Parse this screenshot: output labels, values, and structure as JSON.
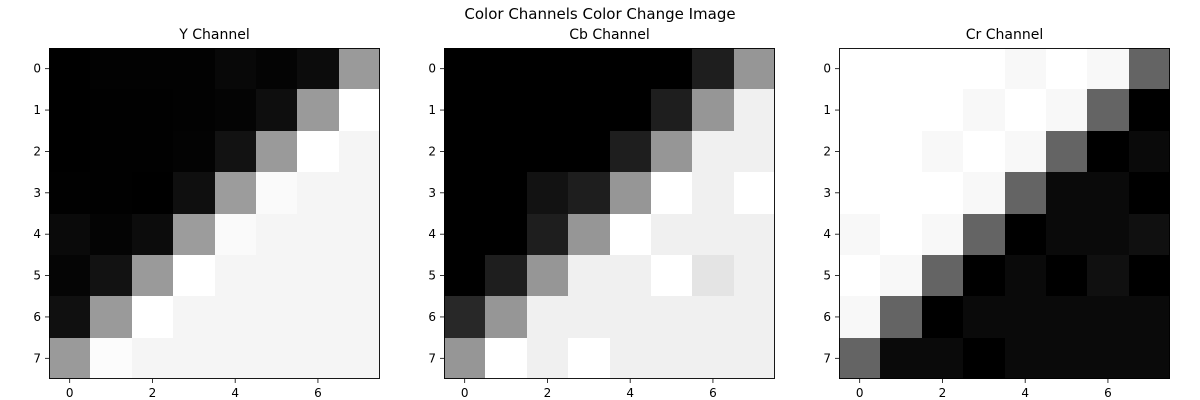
{
  "figure": {
    "suptitle": "Color Channels Color Change Image",
    "background": "#ffffff"
  },
  "chart_data": [
    {
      "type": "heatmap",
      "title": "Y Channel",
      "xlabel": "",
      "ylabel": "",
      "colormap": "gray",
      "x_ticks": [
        0,
        2,
        4,
        6
      ],
      "y_ticks": [
        0,
        1,
        2,
        3,
        4,
        5,
        6,
        7
      ],
      "values": [
        [
          0,
          2,
          2,
          2,
          8,
          4,
          12,
          154
        ],
        [
          0,
          1,
          1,
          2,
          4,
          14,
          154,
          255
        ],
        [
          0,
          1,
          1,
          3,
          18,
          154,
          255,
          245
        ],
        [
          1,
          1,
          0,
          15,
          156,
          250,
          245,
          245
        ],
        [
          10,
          4,
          12,
          156,
          250,
          245,
          245,
          245
        ],
        [
          5,
          18,
          154,
          255,
          245,
          245,
          245,
          245
        ],
        [
          16,
          154,
          255,
          245,
          245,
          245,
          245,
          245
        ],
        [
          154,
          252,
          245,
          245,
          245,
          245,
          245,
          245
        ]
      ]
    },
    {
      "type": "heatmap",
      "title": "Cb Channel",
      "xlabel": "",
      "ylabel": "",
      "colormap": "gray",
      "x_ticks": [
        0,
        2,
        4,
        6
      ],
      "y_ticks": [
        0,
        1,
        2,
        3,
        4,
        5,
        6,
        7
      ],
      "values": [
        [
          0,
          0,
          0,
          0,
          0,
          0,
          30,
          150
        ],
        [
          0,
          0,
          0,
          0,
          0,
          30,
          150,
          240
        ],
        [
          0,
          0,
          0,
          0,
          30,
          150,
          240,
          240
        ],
        [
          0,
          0,
          18,
          30,
          150,
          255,
          240,
          255
        ],
        [
          0,
          0,
          30,
          150,
          255,
          240,
          240,
          240
        ],
        [
          0,
          30,
          150,
          240,
          240,
          255,
          228,
          240
        ],
        [
          40,
          150,
          240,
          240,
          240,
          240,
          240,
          240
        ],
        [
          150,
          255,
          240,
          255,
          240,
          240,
          240,
          240
        ]
      ]
    },
    {
      "type": "heatmap",
      "title": "Cr Channel",
      "xlabel": "",
      "ylabel": "",
      "colormap": "gray",
      "x_ticks": [
        0,
        2,
        4,
        6
      ],
      "y_ticks": [
        0,
        1,
        2,
        3,
        4,
        5,
        6,
        7
      ],
      "values": [
        [
          255,
          255,
          255,
          255,
          248,
          255,
          248,
          100
        ],
        [
          255,
          255,
          255,
          248,
          255,
          248,
          100,
          0
        ],
        [
          255,
          255,
          248,
          255,
          248,
          100,
          0,
          10
        ],
        [
          255,
          255,
          255,
          248,
          100,
          10,
          10,
          0
        ],
        [
          248,
          255,
          248,
          100,
          0,
          10,
          10,
          16
        ],
        [
          255,
          248,
          100,
          0,
          10,
          0,
          16,
          0
        ],
        [
          248,
          100,
          0,
          10,
          10,
          10,
          10,
          10
        ],
        [
          100,
          10,
          10,
          0,
          10,
          10,
          10,
          10
        ]
      ]
    }
  ]
}
